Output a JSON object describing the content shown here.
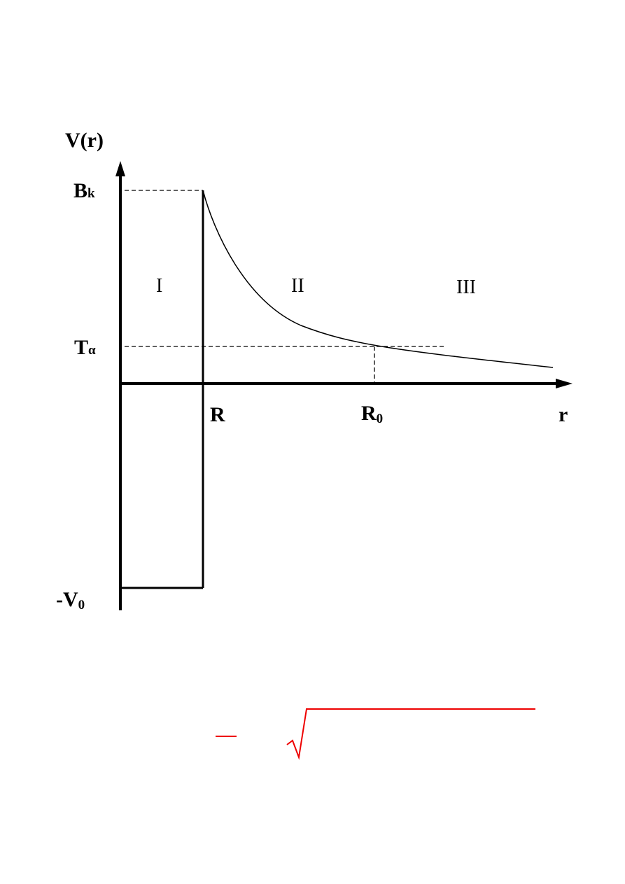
{
  "diagram": {
    "y_axis_label": "V(r)",
    "x_axis_label": "r",
    "barrier_height": {
      "main": "B",
      "sub": "k"
    },
    "alpha_energy": {
      "main": "T",
      "sub": "α"
    },
    "well_depth": {
      "main": "-V",
      "sub": "0"
    },
    "nuclear_radius": "R",
    "turning_point": {
      "main": "R",
      "sub": "0"
    },
    "regions": [
      "I",
      "II",
      "III"
    ]
  }
}
